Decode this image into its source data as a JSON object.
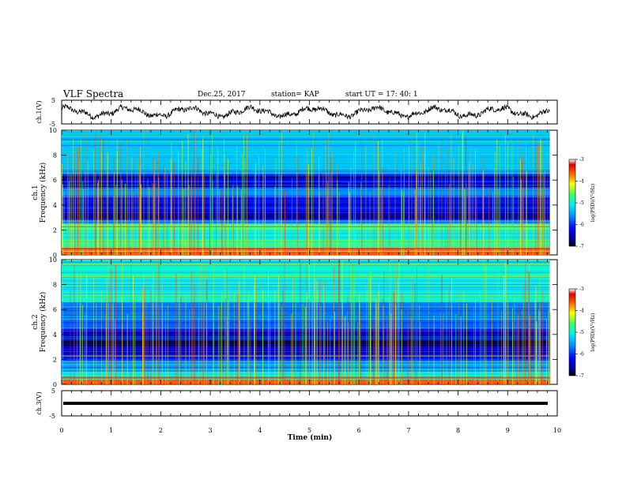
{
  "header": {
    "title": "VLF Spectra",
    "date": "Dec.25, 2017",
    "station": "station= KAP",
    "start": "start  UT  =    17: 40: 1"
  },
  "chart_data": [
    {
      "type": "line",
      "panel": "ch1-waveform",
      "ylabel": "ch.1(V)",
      "ylim": [
        -5,
        5
      ],
      "yticks": [
        "5",
        "-5"
      ],
      "xlim": [
        0,
        10
      ],
      "data_extent_min": [
        0,
        9.85
      ],
      "series": [
        {
          "color": "#000000",
          "description_values": "noisy waveform oscillating roughly between -3 and +3 V"
        }
      ]
    },
    {
      "type": "heatmap",
      "panel": "ch1-spectrogram",
      "ylabel_top": "ch.1",
      "ylabel": "Frequency (kHz)",
      "ylim": [
        0,
        10
      ],
      "yticks": [
        "0",
        "2",
        "4",
        "6",
        "8",
        "10"
      ],
      "xlim": [
        0,
        10
      ],
      "colorbar": {
        "label": "log(PSD)(V²/Hz)",
        "range": [
          -7,
          -3
        ],
        "ticks": [
          "-3",
          "-4",
          "-5",
          "-6",
          "-7"
        ]
      },
      "bands": [
        {
          "f": [
            0,
            0.5
          ],
          "level": -3.6
        },
        {
          "f": [
            0.5,
            1.2
          ],
          "level": -4.6
        },
        {
          "f": [
            1.2,
            2.1
          ],
          "level": -5.1
        },
        {
          "f": [
            2.1,
            2.5
          ],
          "level": -4.7
        },
        {
          "f": [
            2.5,
            2.8
          ],
          "level": -5.6
        },
        {
          "f": [
            2.8,
            3.4
          ],
          "level": -6.6
        },
        {
          "f": [
            3.4,
            4.6
          ],
          "level": -6.3
        },
        {
          "f": [
            4.6,
            5.4
          ],
          "level": -5.6
        },
        {
          "f": [
            5.4,
            6.5
          ],
          "level": -6.3
        },
        {
          "f": [
            6.5,
            10
          ],
          "level": -5.3
        }
      ]
    },
    {
      "type": "heatmap",
      "panel": "ch2-spectrogram",
      "ylabel_top": "ch.2",
      "ylabel": "Frequency (kHz)",
      "ylim": [
        0,
        10
      ],
      "yticks": [
        "0",
        "2",
        "4",
        "6",
        "8",
        "10"
      ],
      "xlim": [
        0,
        10
      ],
      "colorbar": {
        "label": "log(PSD)(V²/Hz)",
        "range": [
          -7,
          -3
        ],
        "ticks": [
          "-3",
          "-4",
          "-5",
          "-6",
          "-7"
        ]
      },
      "bands": [
        {
          "f": [
            0,
            0.4
          ],
          "level": -3.6
        },
        {
          "f": [
            0.4,
            1.0
          ],
          "level": -5.0
        },
        {
          "f": [
            1.0,
            1.9
          ],
          "level": -5.6
        },
        {
          "f": [
            1.9,
            3.0
          ],
          "level": -6.3
        },
        {
          "f": [
            3.0,
            3.6
          ],
          "level": -6.7
        },
        {
          "f": [
            3.6,
            4.4
          ],
          "level": -6.4
        },
        {
          "f": [
            4.4,
            5.2
          ],
          "level": -5.8
        },
        {
          "f": [
            5.2,
            6.6
          ],
          "level": -5.7
        },
        {
          "f": [
            6.6,
            10
          ],
          "level": -5.0
        }
      ]
    },
    {
      "type": "line",
      "panel": "ch3-waveform",
      "ylabel": "ch.3(V)",
      "ylim": [
        -5,
        5
      ],
      "yticks": [
        "5",
        "-5"
      ],
      "xlim": [
        0,
        10
      ],
      "series": [
        {
          "color": "#000000",
          "values_constant": 0
        }
      ]
    }
  ],
  "xaxis": {
    "label": "Time  (min)",
    "ticks": [
      "0",
      "1",
      "2",
      "3",
      "4",
      "5",
      "6",
      "7",
      "8",
      "9",
      "10"
    ],
    "range": [
      0,
      10
    ]
  }
}
